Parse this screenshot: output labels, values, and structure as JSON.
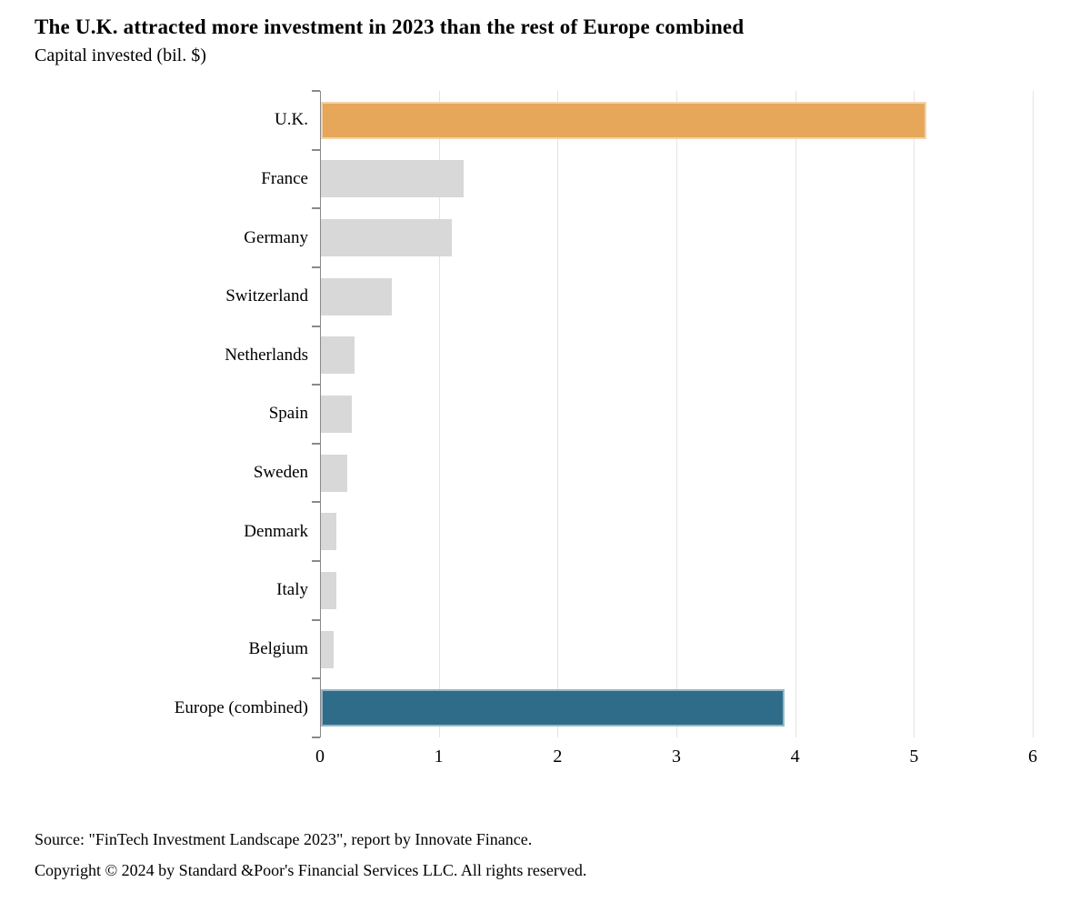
{
  "chart_data": {
    "type": "bar",
    "orientation": "horizontal",
    "title": "The U.K. attracted more investment in 2023 than the rest of Europe combined",
    "subtitle": "Capital invested (bil. $)",
    "categories": [
      "U.K.",
      "France",
      "Germany",
      "Switzerland",
      "Netherlands",
      "Spain",
      "Sweden",
      "Denmark",
      "Italy",
      "Belgium",
      "Europe (combined)"
    ],
    "values": [
      5.1,
      1.2,
      1.1,
      0.6,
      0.28,
      0.26,
      0.22,
      0.13,
      0.13,
      0.11,
      3.9
    ],
    "bar_colors": [
      "#E6A75A",
      "#D8D8D8",
      "#D8D8D8",
      "#D8D8D8",
      "#D8D8D8",
      "#D8D8D8",
      "#D8D8D8",
      "#D8D8D8",
      "#D8D8D8",
      "#D8D8D8",
      "#2E6C8A"
    ],
    "highlight_indices": [
      0,
      10
    ],
    "xlabel": "",
    "ylabel": "",
    "xlim": [
      0,
      6
    ],
    "x_ticks": [
      "0",
      "1",
      "2",
      "3",
      "4",
      "5",
      "6"
    ],
    "x_tick_values": [
      0,
      1,
      2,
      3,
      4,
      5,
      6
    ],
    "grid": true,
    "legend": false
  },
  "colors": {
    "highlight_bar": "#E6A75A",
    "default_bar": "#D8D8D8",
    "combined_bar": "#2E6C8A",
    "gridline": "#E4E4E4",
    "axis": "#8A8A8A",
    "text": "#000000",
    "background": "#FFFFFF"
  },
  "footer": {
    "source": "Source: \"FinTech Investment Landscape 2023\", report by Innovate Finance.",
    "copyright": "Copyright © 2024 by Standard &Poor's Financial Services LLC. All rights reserved."
  }
}
